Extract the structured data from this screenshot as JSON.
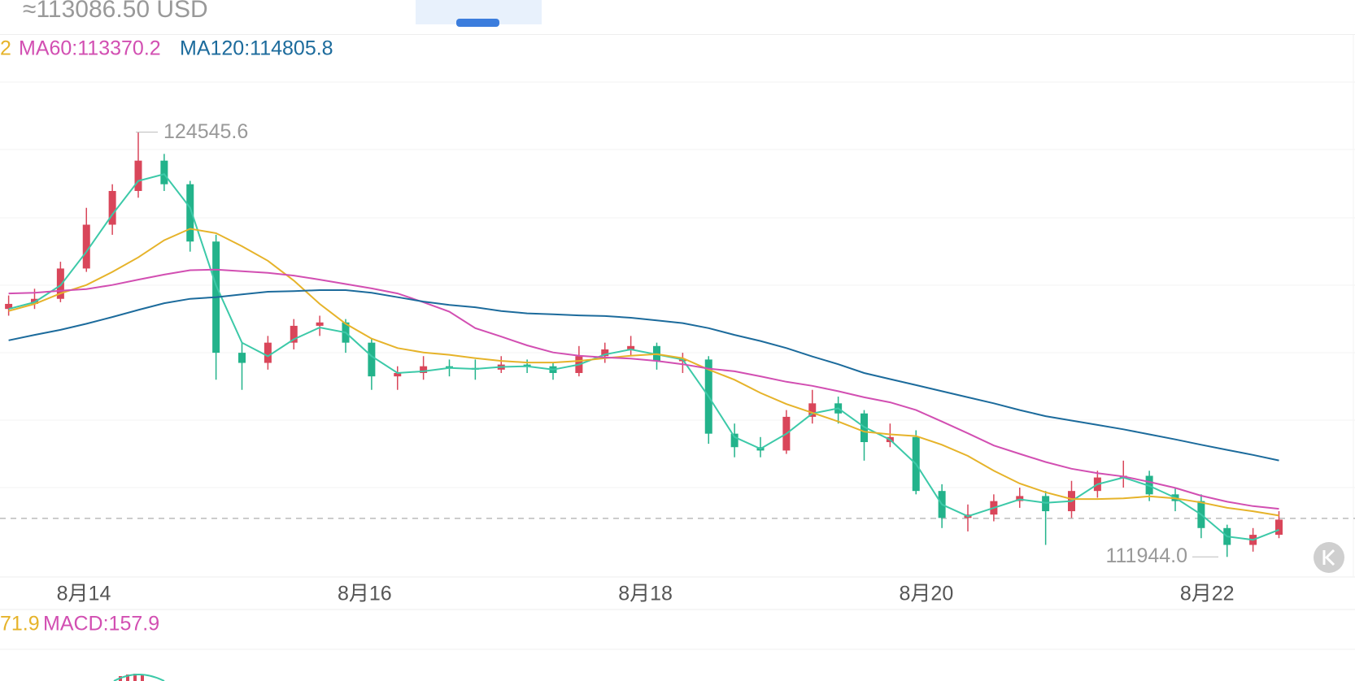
{
  "header": {
    "price": "≈113086.50 USD"
  },
  "legend": [
    {
      "text": "2",
      "color": "#e6b32a"
    },
    {
      "text": "MA60:113370.2",
      "color": "#d24fb2"
    },
    {
      "text": "MA120:114805.8",
      "color": "#1c6b9c"
    }
  ],
  "chart": {
    "type": "candlestick",
    "current_price": 113086.5,
    "up_color": "#d9465a",
    "down_color": "#23b38b",
    "high": {
      "value": 124545.6,
      "label": "124545.6"
    },
    "low": {
      "value": 111944.0,
      "label": "111944.0"
    },
    "x_labels": [
      "8月14",
      "8月16",
      "8月18",
      "8月20",
      "8月22"
    ],
    "candles": [
      [
        119300,
        119700,
        119100,
        119450
      ],
      [
        119450,
        119900,
        119300,
        119600
      ],
      [
        119600,
        120700,
        119500,
        120500
      ],
      [
        120500,
        122300,
        120400,
        121800
      ],
      [
        121800,
        123000,
        121500,
        122800
      ],
      [
        122800,
        124545.6,
        122600,
        123700
      ],
      [
        123700,
        123900,
        122800,
        123000
      ],
      [
        123000,
        123100,
        121000,
        121300
      ],
      [
        121300,
        121500,
        117200,
        118000
      ],
      [
        118000,
        118300,
        116900,
        117700
      ],
      [
        117700,
        118500,
        117500,
        118300
      ],
      [
        118300,
        119000,
        118100,
        118800
      ],
      [
        118800,
        119100,
        118500,
        118900
      ],
      [
        118900,
        119000,
        118000,
        118300
      ],
      [
        118300,
        118400,
        116900,
        117300
      ],
      [
        117300,
        117600,
        116900,
        117400
      ],
      [
        117400,
        117900,
        117200,
        117600
      ],
      [
        117600,
        117800,
        117300,
        117550
      ],
      [
        117550,
        117800,
        117200,
        117500
      ],
      [
        117500,
        117900,
        117400,
        117650
      ],
      [
        117650,
        117800,
        117400,
        117600
      ],
      [
        117600,
        117700,
        117200,
        117400
      ],
      [
        117400,
        118200,
        117300,
        117900
      ],
      [
        117900,
        118300,
        117700,
        118100
      ],
      [
        118100,
        118500,
        117900,
        118200
      ],
      [
        118200,
        118300,
        117500,
        117750
      ],
      [
        117750,
        118000,
        117400,
        117800
      ],
      [
        117800,
        117900,
        115300,
        115600
      ],
      [
        115600,
        115900,
        114900,
        115200
      ],
      [
        115200,
        115500,
        114900,
        115100
      ],
      [
        115100,
        116300,
        115000,
        116100
      ],
      [
        116100,
        116900,
        115900,
        116500
      ],
      [
        116500,
        116700,
        115900,
        116200
      ],
      [
        116200,
        116300,
        114800,
        115350
      ],
      [
        115350,
        115900,
        115200,
        115500
      ],
      [
        115500,
        115700,
        113800,
        113900
      ],
      [
        113900,
        114100,
        112800,
        113100
      ],
      [
        113100,
        113500,
        112700,
        113200
      ],
      [
        113200,
        113800,
        113000,
        113600
      ],
      [
        113600,
        114000,
        113400,
        113750
      ],
      [
        113750,
        113900,
        112300,
        113300
      ],
      [
        113300,
        114200,
        113100,
        113900
      ],
      [
        113900,
        114500,
        113700,
        114300
      ],
      [
        114300,
        114800,
        114000,
        114350
      ],
      [
        114350,
        114500,
        113600,
        113800
      ],
      [
        113800,
        114000,
        113300,
        113600
      ],
      [
        113600,
        113800,
        112500,
        112800
      ],
      [
        112800,
        112900,
        111944.0,
        112300
      ],
      [
        112300,
        112800,
        112100,
        112600
      ],
      [
        112600,
        113300,
        112500,
        113050
      ]
    ],
    "lines": [
      {
        "color": "#3cc9a8",
        "values": [
          119300,
          119500,
          120000,
          121000,
          122100,
          123100,
          123300,
          122300,
          120000,
          118300,
          117900,
          118400,
          118750,
          118600,
          117900,
          117400,
          117450,
          117550,
          117520,
          117580,
          117600,
          117500,
          117650,
          117950,
          118100,
          117950,
          117800,
          116700,
          115500,
          115150,
          115600,
          116200,
          116350,
          115800,
          115420,
          114700,
          113500,
          113150,
          113400,
          113650,
          113550,
          113600,
          114100,
          114300,
          114050,
          113700,
          113200,
          112550,
          112450,
          112750
        ]
      },
      {
        "color": "#e6b32a",
        "values": [
          119240,
          119450,
          119760,
          120010,
          120400,
          120830,
          121340,
          121680,
          121550,
          121160,
          120730,
          120140,
          119450,
          118860,
          118420,
          118140,
          118010,
          117940,
          117840,
          117760,
          117710,
          117710,
          117760,
          117840,
          117910,
          117960,
          117840,
          117500,
          117200,
          116810,
          116480,
          116220,
          115960,
          115660,
          115580,
          115530,
          115270,
          114940,
          114500,
          114120,
          113860,
          113660,
          113660,
          113680,
          113740,
          113680,
          113560,
          113400,
          113300,
          113170
        ]
      },
      {
        "color": "#d24fb2",
        "values": [
          119760,
          119780,
          119840,
          119890,
          120010,
          120170,
          120320,
          120450,
          120470,
          120420,
          120370,
          120290,
          120170,
          120040,
          119910,
          119760,
          119500,
          119220,
          118730,
          118480,
          118220,
          118010,
          117910,
          117860,
          117830,
          117760,
          117660,
          117530,
          117450,
          117300,
          117140,
          117020,
          116860,
          116680,
          116530,
          116300,
          115960,
          115610,
          115250,
          115000,
          114760,
          114560,
          114430,
          114330,
          114170,
          113990,
          113760,
          113580,
          113450,
          113370.2
        ]
      },
      {
        "color": "#1c6b9c",
        "values": [
          118370,
          118530,
          118680,
          118860,
          119060,
          119270,
          119470,
          119600,
          119650,
          119730,
          119810,
          119830,
          119860,
          119860,
          119780,
          119650,
          119520,
          119420,
          119350,
          119240,
          119170,
          119140,
          119110,
          119090,
          119040,
          118960,
          118880,
          118730,
          118530,
          118350,
          118140,
          117890,
          117660,
          117400,
          117220,
          117040,
          116860,
          116680,
          116500,
          116300,
          116120,
          115990,
          115860,
          115730,
          115580,
          115430,
          115270,
          115120,
          114970,
          114805.8
        ]
      }
    ]
  },
  "macd": {
    "labels": [
      {
        "text": "71.9",
        "color": "#e6b32a"
      },
      {
        "text": "MACD:157.9",
        "color": "#d24fb2"
      }
    ]
  }
}
